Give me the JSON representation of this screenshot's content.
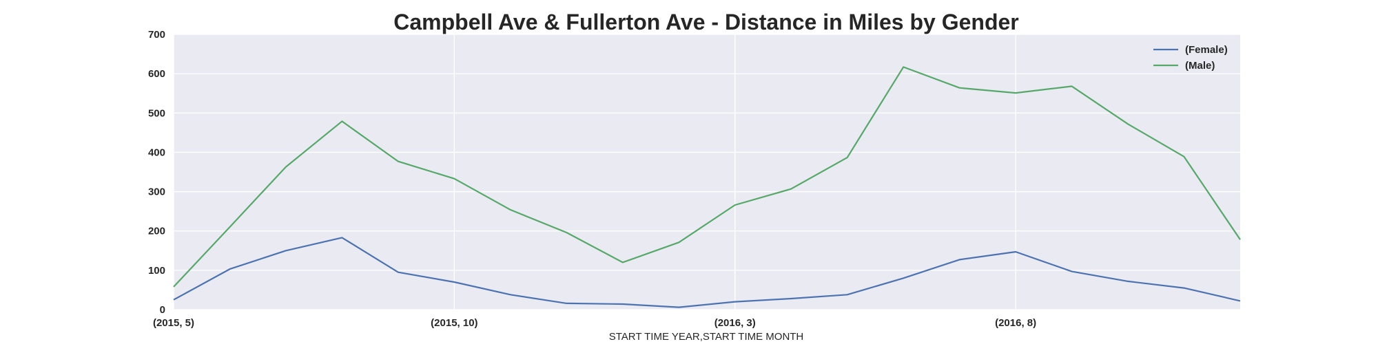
{
  "chart_data": {
    "type": "line",
    "title": "Campbell Ave & Fullerton Ave - Distance in Miles by Gender",
    "xlabel": "START TIME YEAR,START TIME MONTH",
    "ylabel": "",
    "ylim": [
      0,
      700
    ],
    "yticks": [
      0,
      100,
      200,
      300,
      400,
      500,
      600,
      700
    ],
    "grid": true,
    "legend_position": "top-right",
    "x": [
      "(2015, 5)",
      "(2015, 6)",
      "(2015, 7)",
      "(2015, 8)",
      "(2015, 9)",
      "(2015, 10)",
      "(2015, 11)",
      "(2015, 12)",
      "(2016, 1)",
      "(2016, 2)",
      "(2016, 3)",
      "(2016, 4)",
      "(2016, 5)",
      "(2016, 6)",
      "(2016, 7)",
      "(2016, 8)",
      "(2016, 9)",
      "(2016, 10)",
      "(2016, 11)",
      "(2016, 12)"
    ],
    "xtick_labels": [
      "(2015, 5)",
      "(2015, 10)",
      "(2016, 3)",
      "(2016, 8)"
    ],
    "series": [
      {
        "name": "(Female)",
        "color": "#4c72b0",
        "values": [
          25,
          103,
          150,
          183,
          95,
          70,
          38,
          16,
          14,
          6,
          20,
          28,
          38,
          80,
          127,
          147,
          97,
          72,
          55,
          22
        ]
      },
      {
        "name": "(Male)",
        "color": "#55a868",
        "values": [
          58,
          210,
          363,
          479,
          377,
          333,
          254,
          196,
          120,
          171,
          266,
          307,
          387,
          617,
          564,
          551,
          568,
          472,
          389,
          178
        ]
      }
    ]
  },
  "style": {
    "plot_background": "#eaeaf2",
    "grid_color": "#ffffff",
    "text_color": "#262626"
  }
}
